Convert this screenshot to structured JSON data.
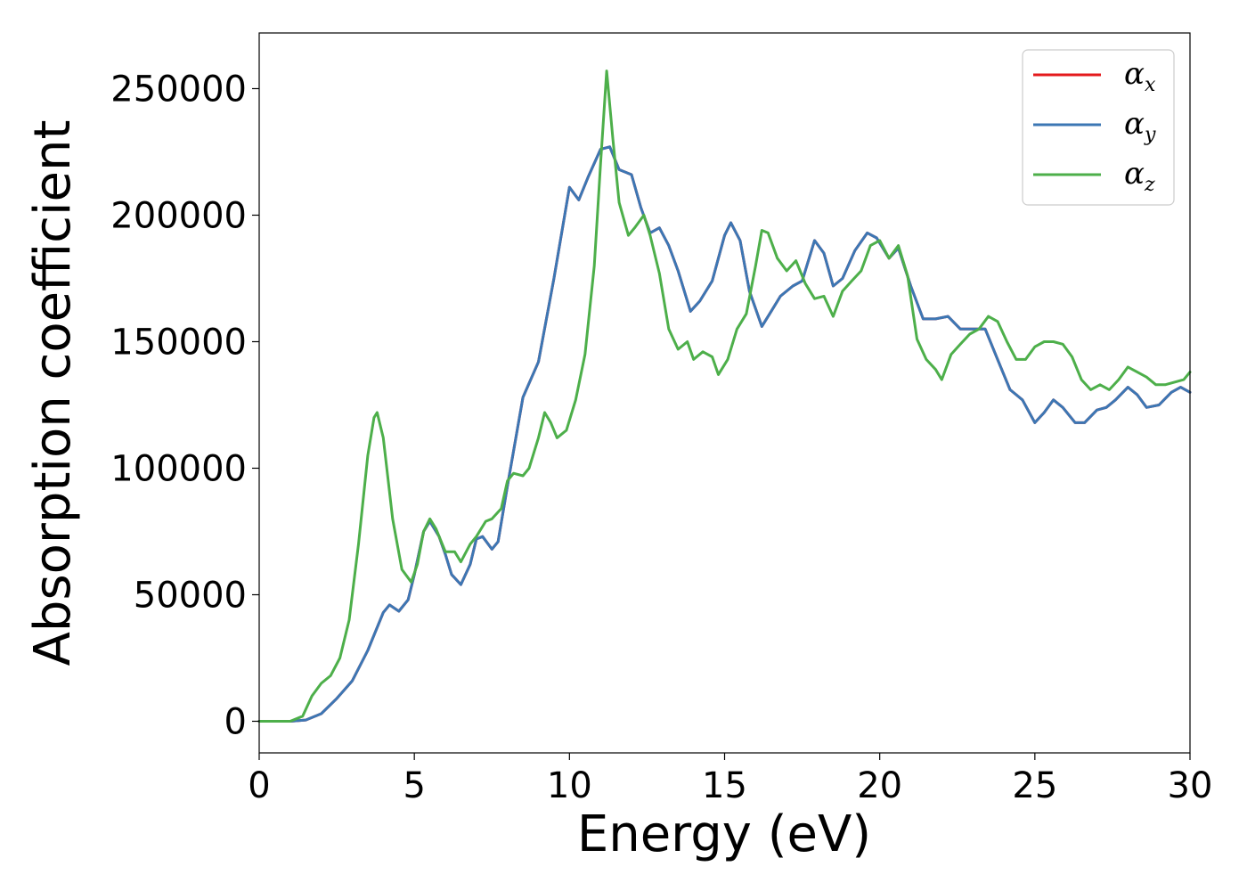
{
  "chart_data": {
    "type": "line",
    "xlabel": "Energy (eV)",
    "ylabel": "Absorption coefficient",
    "xlim": [
      0,
      30
    ],
    "ylim": [
      -12500,
      272000
    ],
    "xticks": [
      0,
      5,
      10,
      15,
      20,
      25,
      30
    ],
    "yticks": [
      0,
      50000,
      100000,
      150000,
      200000,
      250000
    ],
    "grid": false,
    "legend_position": "top-right",
    "series": [
      {
        "name": "x",
        "legend_symbol": "α",
        "legend_subscript": "x",
        "color": "#e41a1c",
        "x": [
          0,
          1,
          1.5,
          2,
          2.5,
          3,
          3.5,
          4,
          4.2,
          4.5,
          4.8,
          5,
          5.3,
          5.5,
          5.8,
          6,
          6.2,
          6.5,
          6.8,
          7,
          7.2,
          7.5,
          7.7,
          8,
          8.5,
          9,
          9.5,
          10,
          10.3,
          10.6,
          11,
          11.3,
          11.6,
          12,
          12.3,
          12.6,
          12.9,
          13.2,
          13.5,
          13.9,
          14.2,
          14.6,
          15,
          15.2,
          15.5,
          15.8,
          16.2,
          16.5,
          16.8,
          17.2,
          17.5,
          17.9,
          18.2,
          18.5,
          18.8,
          19.2,
          19.6,
          19.9,
          20.3,
          20.6,
          21,
          21.4,
          21.8,
          22.2,
          22.6,
          23,
          23.4,
          23.8,
          24.2,
          24.6,
          25,
          25.3,
          25.6,
          25.9,
          26.3,
          26.6,
          27,
          27.3,
          27.6,
          28,
          28.3,
          28.6,
          29,
          29.4,
          29.7,
          30
        ],
        "y": [
          0,
          0,
          500,
          3000,
          9000,
          16000,
          28000,
          43000,
          46000,
          43500,
          48000,
          58000,
          75000,
          79000,
          73000,
          66000,
          58000,
          54000,
          62000,
          72000,
          73000,
          68000,
          71000,
          93000,
          128000,
          142000,
          175000,
          211000,
          206000,
          215000,
          226000,
          227000,
          218000,
          216000,
          203000,
          193000,
          195000,
          188000,
          178000,
          162000,
          166000,
          174000,
          192000,
          197000,
          190000,
          170000,
          156000,
          162000,
          168000,
          172000,
          174000,
          190000,
          185000,
          172000,
          175000,
          186000,
          193000,
          191000,
          183000,
          187000,
          172000,
          159000,
          159000,
          160000,
          155000,
          155000,
          155000,
          143000,
          131000,
          127000,
          118000,
          122000,
          127000,
          124000,
          118000,
          118000,
          123000,
          124000,
          127000,
          132000,
          129000,
          124000,
          125000,
          130000,
          132000,
          130000
        ]
      },
      {
        "name": "y",
        "legend_symbol": "α",
        "legend_subscript": "y",
        "color": "#3c77b4",
        "x": [
          0,
          1,
          1.5,
          2,
          2.5,
          3,
          3.5,
          4,
          4.2,
          4.5,
          4.8,
          5,
          5.3,
          5.5,
          5.8,
          6,
          6.2,
          6.5,
          6.8,
          7,
          7.2,
          7.5,
          7.7,
          8,
          8.5,
          9,
          9.5,
          10,
          10.3,
          10.6,
          11,
          11.3,
          11.6,
          12,
          12.3,
          12.6,
          12.9,
          13.2,
          13.5,
          13.9,
          14.2,
          14.6,
          15,
          15.2,
          15.5,
          15.8,
          16.2,
          16.5,
          16.8,
          17.2,
          17.5,
          17.9,
          18.2,
          18.5,
          18.8,
          19.2,
          19.6,
          19.9,
          20.3,
          20.6,
          21,
          21.4,
          21.8,
          22.2,
          22.6,
          23,
          23.4,
          23.8,
          24.2,
          24.6,
          25,
          25.3,
          25.6,
          25.9,
          26.3,
          26.6,
          27,
          27.3,
          27.6,
          28,
          28.3,
          28.6,
          29,
          29.4,
          29.7,
          30
        ],
        "y": [
          0,
          0,
          500,
          3000,
          9000,
          16000,
          28000,
          43000,
          46000,
          43500,
          48000,
          58000,
          75000,
          79000,
          73000,
          66000,
          58000,
          54000,
          62000,
          72000,
          73000,
          68000,
          71000,
          93000,
          128000,
          142000,
          175000,
          211000,
          206000,
          215000,
          226000,
          227000,
          218000,
          216000,
          203000,
          193000,
          195000,
          188000,
          178000,
          162000,
          166000,
          174000,
          192000,
          197000,
          190000,
          170000,
          156000,
          162000,
          168000,
          172000,
          174000,
          190000,
          185000,
          172000,
          175000,
          186000,
          193000,
          191000,
          183000,
          187000,
          172000,
          159000,
          159000,
          160000,
          155000,
          155000,
          155000,
          143000,
          131000,
          127000,
          118000,
          122000,
          127000,
          124000,
          118000,
          118000,
          123000,
          124000,
          127000,
          132000,
          129000,
          124000,
          125000,
          130000,
          132000,
          130000
        ]
      },
      {
        "name": "z",
        "legend_symbol": "α",
        "legend_subscript": "z",
        "color": "#4daf4a",
        "x": [
          0,
          1,
          1.4,
          1.7,
          2,
          2.3,
          2.6,
          2.9,
          3.2,
          3.5,
          3.7,
          3.8,
          4,
          4.3,
          4.6,
          4.9,
          5.1,
          5.3,
          5.5,
          5.7,
          6,
          6.3,
          6.5,
          6.8,
          7,
          7.3,
          7.5,
          7.8,
          8,
          8.2,
          8.5,
          8.7,
          9,
          9.2,
          9.4,
          9.6,
          9.9,
          10.2,
          10.5,
          10.8,
          11,
          11.2,
          11.4,
          11.6,
          11.9,
          12.1,
          12.4,
          12.6,
          12.9,
          13.2,
          13.5,
          13.8,
          14,
          14.3,
          14.6,
          14.8,
          15.1,
          15.4,
          15.7,
          16,
          16.2,
          16.4,
          16.7,
          17,
          17.3,
          17.6,
          17.9,
          18.2,
          18.5,
          18.8,
          19.1,
          19.4,
          19.7,
          20,
          20.3,
          20.6,
          20.9,
          21.2,
          21.5,
          21.8,
          22,
          22.3,
          22.6,
          22.9,
          23.2,
          23.5,
          23.8,
          24.1,
          24.4,
          24.7,
          25,
          25.3,
          25.6,
          25.9,
          26.2,
          26.5,
          26.8,
          27.1,
          27.4,
          27.7,
          28,
          28.3,
          28.6,
          28.9,
          29.2,
          29.5,
          29.8,
          30
        ],
        "y": [
          0,
          0,
          2000,
          10000,
          15000,
          18000,
          25000,
          40000,
          70000,
          105000,
          120000,
          122000,
          112000,
          80000,
          60000,
          55000,
          62000,
          75000,
          80000,
          76000,
          67000,
          67000,
          63000,
          70000,
          73000,
          79000,
          80000,
          84000,
          95000,
          98000,
          97000,
          100000,
          112000,
          122000,
          118000,
          112000,
          115000,
          127000,
          145000,
          180000,
          220000,
          257000,
          230000,
          205000,
          192000,
          195000,
          200000,
          192000,
          177000,
          155000,
          147000,
          150000,
          143000,
          146000,
          144000,
          137000,
          143000,
          155000,
          161000,
          180000,
          194000,
          193000,
          183000,
          178000,
          182000,
          173000,
          167000,
          168000,
          160000,
          170000,
          174000,
          178000,
          188000,
          190000,
          183000,
          188000,
          176000,
          151000,
          143000,
          139000,
          135000,
          145000,
          149000,
          153000,
          155000,
          160000,
          158000,
          150000,
          143000,
          143000,
          148000,
          150000,
          150000,
          149000,
          144000,
          135000,
          131000,
          133000,
          131000,
          135000,
          140000,
          138000,
          136000,
          133000,
          133000,
          134000,
          135000,
          138000
        ]
      }
    ]
  }
}
